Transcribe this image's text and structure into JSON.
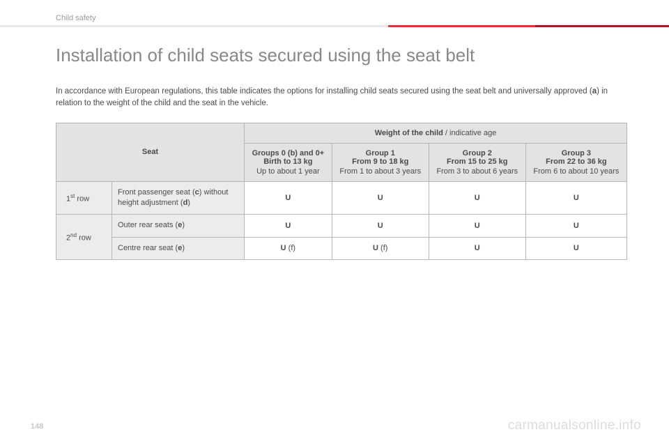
{
  "breadcrumb": "Child safety",
  "title": "Installation of child seats secured using the seat belt",
  "intro_part1": "In accordance with European regulations, this table indicates the options for installing child seats secured using the seat belt and universally approved (",
  "intro_bold_a": "a",
  "intro_part2": ") in relation to the weight of the child and the seat in the vehicle.",
  "table": {
    "seat_header": "Seat",
    "weight_header_bold": "Weight of the child",
    "weight_header_light": " / indicative age",
    "groups": [
      {
        "line1": "Groups 0 (b) and 0+",
        "line2": "Birth to 13 kg",
        "line3": "Up to about 1 year"
      },
      {
        "line1": "Group 1",
        "line2": "From 9 to 18 kg",
        "line3": "From 1 to about 3 years"
      },
      {
        "line1": "Group 2",
        "line2": "From 15 to 25 kg",
        "line3": "From 3 to about 6 years"
      },
      {
        "line1": "Group 3",
        "line2": "From 22 to 36 kg",
        "line3": "From 6 to about 10 years"
      }
    ],
    "rows": [
      {
        "row_label_pre": "1",
        "row_label_sup": "st",
        "row_label_post": " row",
        "seat_desc_pre": "Front passenger seat (",
        "seat_desc_b1": "c",
        "seat_desc_mid": ") without height adjustment (",
        "seat_desc_b2": "d",
        "seat_desc_end": ")",
        "cells": [
          "U",
          "U",
          "U",
          "U"
        ],
        "notes": [
          "",
          "",
          "",
          ""
        ]
      },
      {
        "row_label_pre": "2",
        "row_label_sup": "nd",
        "row_label_post": " row",
        "seat_desc_pre": "Outer rear seats (",
        "seat_desc_b1": "e",
        "seat_desc_mid": "",
        "seat_desc_b2": "",
        "seat_desc_end": ")",
        "cells": [
          "U",
          "U",
          "U",
          "U"
        ],
        "notes": [
          "",
          "",
          "",
          ""
        ]
      },
      {
        "row_label_pre": "",
        "row_label_sup": "",
        "row_label_post": "",
        "seat_desc_pre": "Centre rear seat (",
        "seat_desc_b1": "e",
        "seat_desc_mid": "",
        "seat_desc_b2": "",
        "seat_desc_end": ")",
        "cells": [
          "U",
          "U",
          "U",
          "U"
        ],
        "notes": [
          " (f)",
          " (f)",
          "",
          ""
        ]
      }
    ]
  },
  "page_number": "148",
  "watermark": "carmanualsonline.info",
  "colors": {
    "header_grey": "#e8e8e8",
    "header_red": "#d93838",
    "header_darkred": "#a02020",
    "table_header_bg": "#e3e3e3",
    "table_border": "#b5b5b5",
    "text": "#4a4a4a",
    "title_grey": "#888888"
  }
}
